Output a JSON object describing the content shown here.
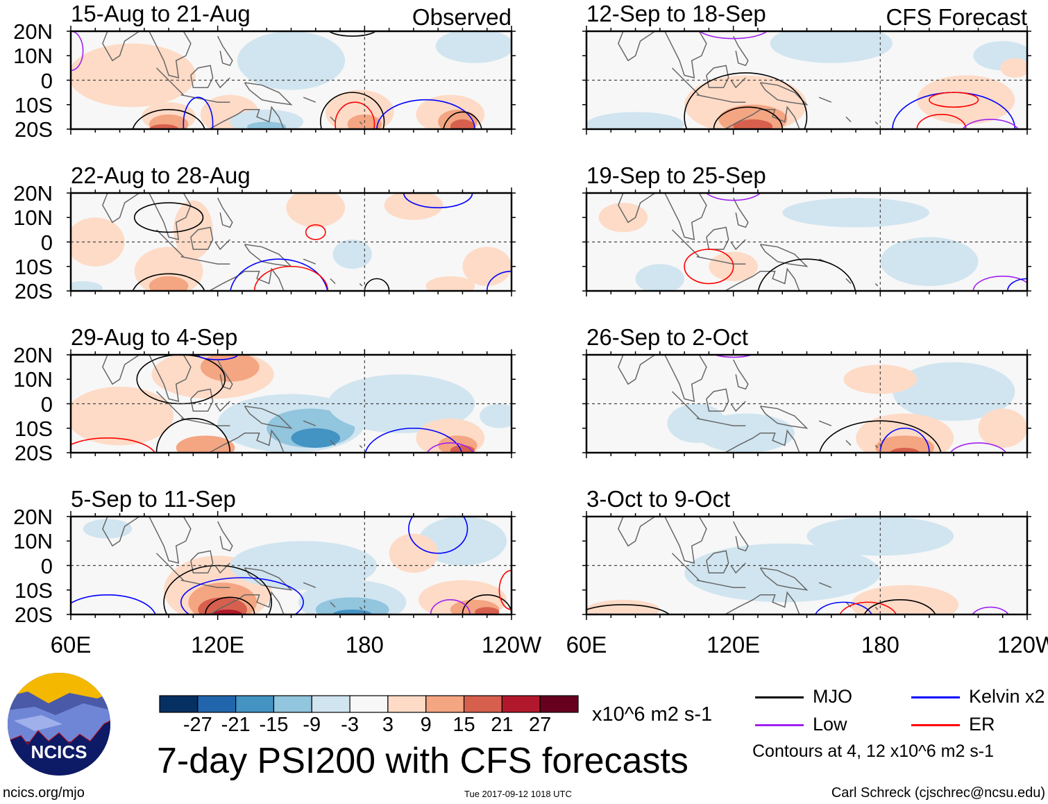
{
  "figure": {
    "title": "7-day PSI200 with CFS forecasts",
    "observed_label": "Observed",
    "forecast_label": "CFS Forecast",
    "lat_labels": [
      "20N",
      "10N",
      "0",
      "10S",
      "20S"
    ],
    "lon_labels": [
      "60E",
      "120E",
      "180",
      "120W"
    ],
    "panels": [
      {
        "title": "15-Aug to 21-Aug",
        "type": "observed"
      },
      {
        "title": "22-Aug to 28-Aug",
        "type": "observed"
      },
      {
        "title": "29-Aug to 4-Sep",
        "type": "observed"
      },
      {
        "title": "5-Sep to 11-Sep",
        "type": "observed"
      },
      {
        "title": "12-Sep to 18-Sep",
        "type": "forecast"
      },
      {
        "title": "19-Sep to 25-Sep",
        "type": "forecast"
      },
      {
        "title": "26-Sep to 2-Oct",
        "type": "forecast"
      },
      {
        "title": "3-Oct to 9-Oct",
        "type": "forecast"
      }
    ]
  },
  "colorbar": {
    "labels": [
      "-27",
      "-21",
      "-15",
      "-9",
      "-3",
      "3",
      "9",
      "15",
      "21",
      "27"
    ],
    "colors": [
      "#053061",
      "#2166ac",
      "#4393c3",
      "#92c5de",
      "#d1e5f0",
      "#f7f7f7",
      "#fddbc7",
      "#f4a582",
      "#d6604d",
      "#b2182b",
      "#67001f"
    ],
    "units": "x10^6 m2 s-1"
  },
  "legend": {
    "items": [
      {
        "label": "MJO",
        "color": "#000000"
      },
      {
        "label": "Kelvin x2",
        "color": "#0000ff"
      },
      {
        "label": "Low",
        "color": "#a020f0"
      },
      {
        "label": "ER",
        "color": "#ff0000"
      }
    ],
    "contour_note": "Contours at 4, 12 x10^6 m2 s-1"
  },
  "logo": {
    "text": "NCICS"
  },
  "footer": {
    "url": "ncics.org/mjo",
    "timestamp": "Tue 2017-09-12 1018 UTC",
    "author": "Carl Schreck (cjschrec@ncsu.edu)"
  }
}
